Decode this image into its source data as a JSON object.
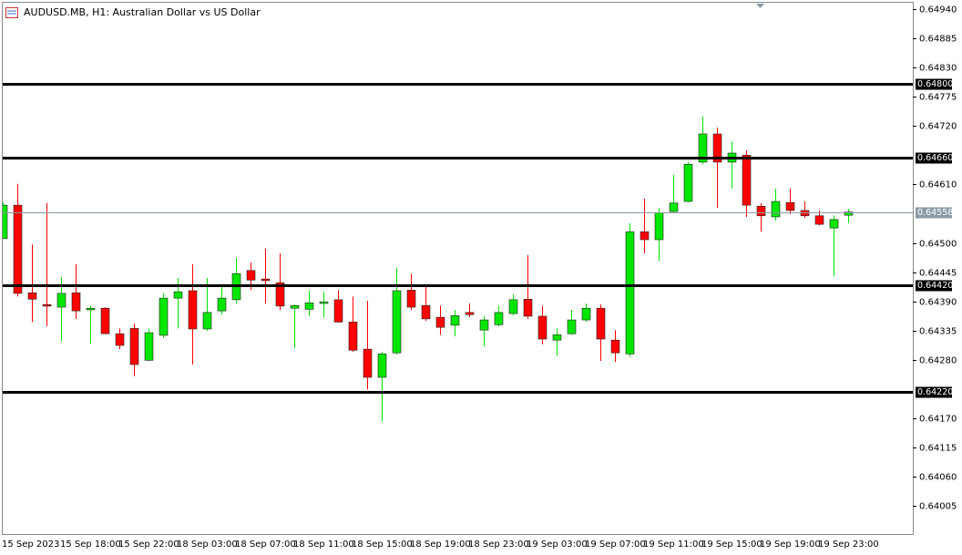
{
  "chart_data": {
    "type": "candlestick",
    "title": "AUDUSD.MB, H1:  Australian Dollar vs US Dollar",
    "categories": [
      "15 Sep 2023",
      null,
      null,
      null,
      "15 Sep 18:00",
      null,
      null,
      null,
      "15 Sep 22:00",
      null,
      null,
      null,
      "18 Sep 03:00",
      null,
      null,
      null,
      "18 Sep 07:00",
      null,
      null,
      null,
      "18 Sep 11:00",
      null,
      null,
      null,
      "18 Sep 15:00",
      null,
      null,
      null,
      "18 Sep 19:00",
      null,
      null,
      null,
      "18 Sep 23:00",
      null,
      null,
      null,
      "19 Sep 03:00",
      null,
      null,
      null,
      "19 Sep 07:00",
      null,
      null,
      null,
      "19 Sep 11:00",
      null,
      null,
      null,
      "19 Sep 15:00",
      null,
      null,
      null,
      "19 Sep 19:00",
      null,
      null,
      null,
      "19 Sep 23:00",
      null,
      null
    ],
    "open": [
      0.64508,
      0.64571,
      0.64406,
      0.64384,
      0.64379,
      0.64406,
      0.64374,
      0.64377,
      0.64329,
      0.64339,
      0.64279,
      0.64326,
      0.64396,
      0.6441,
      0.64338,
      0.64372,
      0.64393,
      0.64448,
      0.64432,
      0.64425,
      0.64377,
      0.64375,
      0.64386,
      0.64393,
      0.64351,
      0.643,
      0.64247,
      0.64293,
      0.64411,
      0.64382,
      0.6436,
      0.64345,
      0.64369,
      0.64336,
      0.64346,
      0.64367,
      0.64394,
      0.64362,
      0.64317,
      0.64329,
      0.64355,
      0.64377,
      0.64317,
      0.64291,
      0.64521,
      0.64506,
      0.64559,
      0.64578,
      0.64652,
      0.64705,
      0.64652,
      0.64665,
      0.64569,
      0.64549,
      0.64576,
      0.64561,
      0.64551,
      0.64528,
      0.64552
    ],
    "high": [
      0.64576,
      0.64611,
      0.64497,
      0.64575,
      0.64436,
      0.6446,
      0.64382,
      0.64379,
      0.64339,
      0.64348,
      0.64339,
      0.64405,
      0.64434,
      0.6446,
      0.64434,
      0.64417,
      0.64472,
      0.64463,
      0.64489,
      0.6448,
      0.64384,
      0.64411,
      0.64408,
      0.64411,
      0.64399,
      0.64391,
      0.64295,
      0.64453,
      0.64442,
      0.64417,
      0.64382,
      0.64374,
      0.64386,
      0.64362,
      0.64382,
      0.64403,
      0.64477,
      0.64382,
      0.64339,
      0.64374,
      0.64386,
      0.64384,
      0.64336,
      0.64537,
      0.64583,
      0.64566,
      0.64628,
      0.64652,
      0.64738,
      0.64717,
      0.64691,
      0.64674,
      0.64575,
      0.64602,
      0.64602,
      0.64578,
      0.64561,
      0.64552,
      0.64564
    ],
    "low": [
      0.64508,
      0.64399,
      0.64351,
      0.64343,
      0.64315,
      0.64357,
      0.6431,
      0.64329,
      0.643,
      0.64249,
      0.64278,
      0.64321,
      0.64339,
      0.64271,
      0.64334,
      0.64365,
      0.64386,
      0.64411,
      0.64386,
      0.64374,
      0.64302,
      0.64362,
      0.6436,
      0.6435,
      0.64295,
      0.64224,
      0.64164,
      0.6429,
      0.64374,
      0.64353,
      0.64327,
      0.64324,
      0.6436,
      0.64305,
      0.64343,
      0.64363,
      0.64357,
      0.64309,
      0.64288,
      0.64327,
      0.64351,
      0.64278,
      0.64276,
      0.64285,
      0.6448,
      0.64466,
      0.64557,
      0.64576,
      0.64648,
      0.64566,
      0.64602,
      0.64549,
      0.64521,
      0.64542,
      0.64554,
      0.64547,
      0.64533,
      0.64437,
      0.64537
    ],
    "close": [
      0.64571,
      0.64405,
      0.64394,
      0.64381,
      0.64405,
      0.64372,
      0.64377,
      0.64329,
      0.64307,
      0.64271,
      0.64331,
      0.64396,
      0.64408,
      0.64338,
      0.64369,
      0.64396,
      0.64442,
      0.6443,
      0.64429,
      0.64381,
      0.64382,
      0.64387,
      0.64389,
      0.64351,
      0.64298,
      0.64247,
      0.64291,
      0.6441,
      0.64379,
      0.64357,
      0.64341,
      0.64363,
      0.64365,
      0.64355,
      0.64369,
      0.64393,
      0.64362,
      0.64319,
      0.64327,
      0.64355,
      0.64377,
      0.64319,
      0.64293,
      0.64521,
      0.64506,
      0.64557,
      0.64575,
      0.64648,
      0.64705,
      0.64652,
      0.64669,
      0.64571,
      0.64551,
      0.64578,
      0.64561,
      0.64551,
      0.64535,
      0.64544,
      0.64558
    ],
    "up_color": "#00e600",
    "down_color": "#ff0000",
    "ylim": [
      0.63952,
      0.64952
    ],
    "yticks": [
      {
        "value": 0.6494,
        "label": "0.64940"
      },
      {
        "value": 0.64885,
        "label": "0.64885"
      },
      {
        "value": 0.6483,
        "label": "0.64830"
      },
      {
        "value": 0.64775,
        "label": "0.64775"
      },
      {
        "value": 0.6472,
        "label": "0.64720"
      },
      {
        "value": 0.6461,
        "label": "0.64610"
      },
      {
        "value": 0.645,
        "label": "0.64500"
      },
      {
        "value": 0.64445,
        "label": "0.64445"
      },
      {
        "value": 0.6439,
        "label": "0.64390"
      },
      {
        "value": 0.64335,
        "label": "0.64335"
      },
      {
        "value": 0.6428,
        "label": "0.64280"
      },
      {
        "value": 0.6417,
        "label": "0.64170"
      },
      {
        "value": 0.64115,
        "label": "0.64115"
      },
      {
        "value": 0.6406,
        "label": "0.64060"
      },
      {
        "value": 0.64005,
        "label": "0.64005"
      }
    ],
    "hlines": [
      {
        "value": 0.648,
        "label": "0.64800"
      },
      {
        "value": 0.6466,
        "label": "0.64660"
      },
      {
        "value": 0.6442,
        "label": "0.64420"
      },
      {
        "value": 0.6422,
        "label": "0.64220"
      }
    ],
    "current_price": {
      "value": 0.64558,
      "label": "0.64558"
    }
  }
}
